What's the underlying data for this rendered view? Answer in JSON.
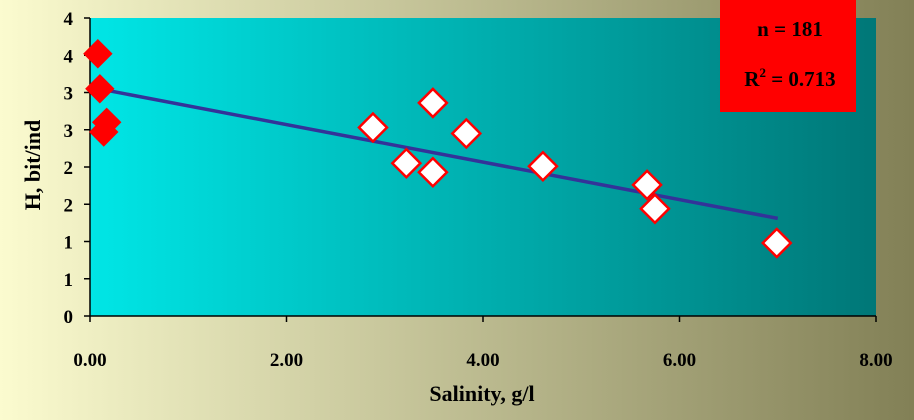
{
  "chart_data": {
    "type": "scatter",
    "xlabel": "Salinity, g/l",
    "ylabel": "H, bit/ind",
    "xlim": [
      0,
      8
    ],
    "ylim": [
      0,
      4
    ],
    "x_ticks": [
      0,
      2,
      4,
      6,
      8
    ],
    "x_tick_labels": [
      "0.00",
      "2.00",
      "4.00",
      "6.00",
      "8.00"
    ],
    "y_ticks": [
      0,
      0.5,
      1,
      1.5,
      2,
      2.5,
      3,
      3.5,
      4
    ],
    "y_tick_labels": [
      "0",
      "1",
      "1",
      "2",
      "2",
      "3",
      "3",
      "4",
      "4"
    ],
    "grid": false,
    "series": [
      {
        "color": "#ff0000",
        "marker": "diamond-filled",
        "points": [
          {
            "x": 0.08,
            "y": 3.52
          },
          {
            "x": 0.1,
            "y": 3.05
          },
          {
            "x": 0.17,
            "y": 2.6
          },
          {
            "x": 0.14,
            "y": 2.47
          }
        ]
      },
      {
        "color": "#ff0000",
        "marker": "diamond-hollow",
        "points": [
          {
            "x": 2.88,
            "y": 2.53
          },
          {
            "x": 3.22,
            "y": 2.05
          },
          {
            "x": 3.49,
            "y": 2.86
          },
          {
            "x": 3.49,
            "y": 1.93
          },
          {
            "x": 3.83,
            "y": 2.45
          },
          {
            "x": 4.61,
            "y": 2.01
          },
          {
            "x": 5.67,
            "y": 1.76
          },
          {
            "x": 5.75,
            "y": 1.44
          },
          {
            "x": 6.99,
            "y": 0.98
          }
        ]
      }
    ],
    "trendline": {
      "color": "#333399",
      "x": [
        0.05,
        7.0
      ],
      "y": [
        3.06,
        1.31
      ]
    },
    "annotation": {
      "line1": "n = 181",
      "line2_prefix": "R",
      "line2_sup": "2",
      "line2_suffix": " = 0.713",
      "background": "#ff0000"
    }
  },
  "colors": {
    "page_gradient_left": "#fbfbcf",
    "page_gradient_right": "#828056",
    "plot_gradient_left": "#00e6e6",
    "plot_gradient_right": "#007777",
    "axis": "#000000"
  }
}
